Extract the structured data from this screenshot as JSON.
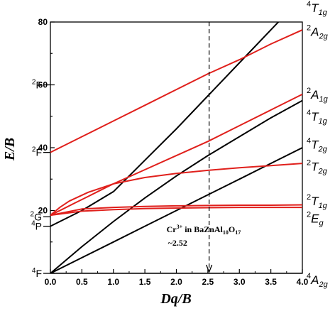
{
  "chart_data": {
    "type": "line",
    "title": "",
    "xlabel": "Dq/B",
    "ylabel": "E/B",
    "xlim": [
      0,
      4
    ],
    "ylim": [
      0,
      80
    ],
    "x_ticks": [
      "0.0",
      "0.5",
      "1.0",
      "1.5",
      "2.0",
      "2.5",
      "3.0",
      "3.5",
      "4.0"
    ],
    "y_ticks": [
      "20",
      "40",
      "60",
      "80"
    ],
    "black_color": "#000000",
    "red_color": "#e0201c",
    "series": [
      {
        "color": "black",
        "x": [
          0,
          4
        ],
        "y": [
          0,
          0
        ]
      },
      {
        "color": "black",
        "x": [
          0,
          0.5,
          1,
          1.5,
          2,
          2.5,
          3,
          3.5,
          4
        ],
        "y": [
          0,
          5,
          10,
          15,
          20,
          25,
          30,
          35,
          40
        ]
      },
      {
        "color": "black",
        "x": [
          0,
          0.5,
          1,
          1.5,
          2,
          2.5,
          3,
          3.5,
          4
        ],
        "y": [
          0,
          8.5,
          16.5,
          24,
          31,
          37.5,
          43.5,
          49.5,
          55
        ]
      },
      {
        "color": "black",
        "x": [
          0,
          0.5,
          1,
          1.5,
          2,
          2.5,
          3,
          3.5,
          4
        ],
        "y": [
          15,
          20,
          26,
          36,
          46,
          56.5,
          67,
          77.5,
          88
        ]
      },
      {
        "color": "red",
        "x": [
          0,
          0.5,
          1,
          1.5,
          2,
          2.5,
          3,
          3.5,
          4
        ],
        "y": [
          18.5,
          20.5,
          21,
          21.3,
          21.5,
          21.6,
          21.7,
          21.7,
          21.8
        ]
      },
      {
        "color": "red",
        "x": [
          0,
          0.5,
          1,
          1.5,
          2,
          2.5,
          3,
          3.5,
          4
        ],
        "y": [
          18.5,
          19.8,
          20.3,
          20.6,
          20.8,
          20.9,
          21,
          21,
          21
        ]
      },
      {
        "color": "red",
        "x": [
          0,
          0.15,
          0.3,
          0.6,
          1,
          1.5,
          2,
          2.5,
          3,
          3.5,
          4
        ],
        "y": [
          18.5,
          21,
          23,
          25.8,
          28.5,
          30.5,
          31.8,
          32.8,
          33.6,
          34.3,
          35
        ]
      },
      {
        "color": "red",
        "x": [
          0,
          0.2,
          0.4,
          0.6,
          0.8,
          1,
          1.5,
          2,
          2.5,
          3,
          3.5,
          4
        ],
        "y": [
          18.5,
          20.5,
          22.5,
          24.5,
          26.5,
          28.5,
          33,
          37.5,
          42,
          47,
          52,
          57
        ]
      },
      {
        "color": "red",
        "x": [
          0,
          0.5,
          1,
          1.5,
          2,
          2.5,
          3,
          3.5,
          4
        ],
        "y": [
          38.5,
          43.5,
          48.5,
          53.5,
          58.5,
          63.5,
          68,
          73,
          77.5
        ]
      }
    ],
    "marker_line": {
      "x": 2.52
    },
    "left_terms": [
      {
        "sup": "4",
        "main": "F",
        "y": 0
      },
      {
        "sup": "4",
        "main": "P",
        "y": 15
      },
      {
        "sup": "2",
        "main": "G",
        "y": 18
      },
      {
        "sup": "2",
        "main": "F",
        "y": 38.5
      },
      {
        "sup": "2",
        "main": "F",
        "y": 60
      }
    ],
    "right_terms": [
      {
        "sup": "4",
        "main": "T",
        "sub": "1g",
        "y": 84.5
      },
      {
        "sup": "2",
        "main": "A",
        "sub": "2g",
        "y": 77
      },
      {
        "sup": "2",
        "main": "A",
        "sub": "1g",
        "y": 57
      },
      {
        "sup": "4",
        "main": "T",
        "sub": "1g",
        "y": 50
      },
      {
        "sup": "4",
        "main": "T",
        "sub": "2g",
        "y": 41
      },
      {
        "sup": "2",
        "main": "T",
        "sub": "2g",
        "y": 34
      },
      {
        "sup": "2",
        "main": "T",
        "sub": "1g",
        "y": 23
      },
      {
        "sup": "2",
        "main": "E",
        "sub": "g",
        "y": 17.5
      },
      {
        "sup": "4",
        "main": "A",
        "sub": "2g",
        "y": -2
      }
    ],
    "annotation": {
      "line1_a": "Cr",
      "line1_sup": "3+",
      "line1_b": " in BaZnAl",
      "line1_sub1": "10",
      "line1_c": "O",
      "line1_sub2": "17",
      "line2": "~2.52"
    }
  }
}
